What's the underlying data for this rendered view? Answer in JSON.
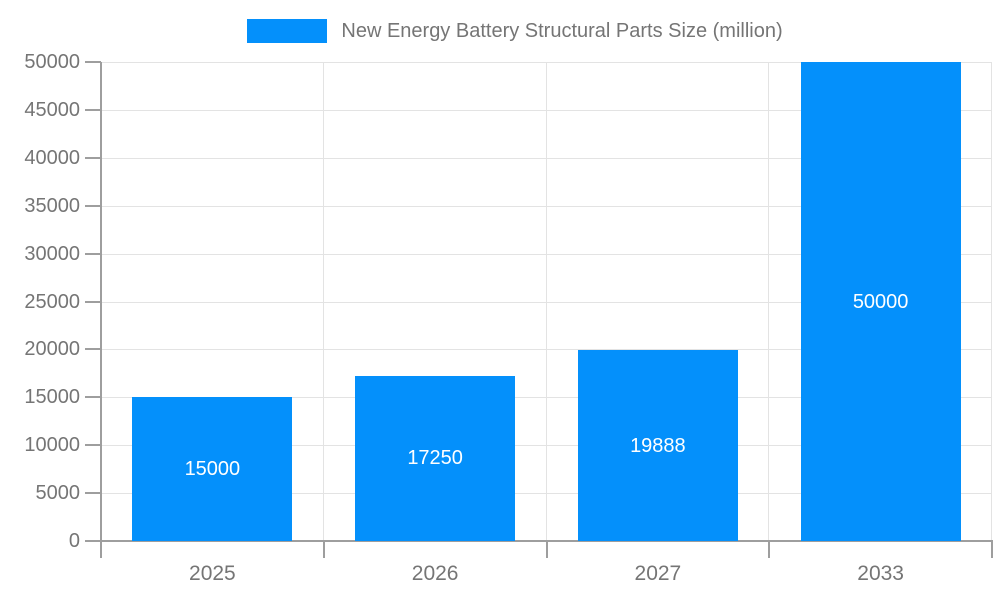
{
  "legend": {
    "label": "New Energy Battery Structural Parts Size (million)",
    "swatch_color": "#0490fb"
  },
  "chart_data": {
    "type": "bar",
    "title": "",
    "xlabel": "",
    "ylabel": "",
    "categories": [
      "2025",
      "2026",
      "2027",
      "2033"
    ],
    "values": [
      15000,
      17250,
      19888,
      50000
    ],
    "series_name": "New Energy Battery Structural Parts Size (million)",
    "ylim": [
      0,
      50000
    ],
    "yticks": [
      0,
      5000,
      10000,
      15000,
      20000,
      25000,
      30000,
      35000,
      40000,
      45000,
      50000
    ],
    "grid": true,
    "legend_position": "top-center",
    "bar_color": "#0490fb",
    "value_label_color": "#ffffff",
    "axis_text_color": "#757575",
    "grid_color": "#e3e3e3",
    "axis_line_color": "#9e9e9e",
    "background_color": "#ffffff"
  }
}
